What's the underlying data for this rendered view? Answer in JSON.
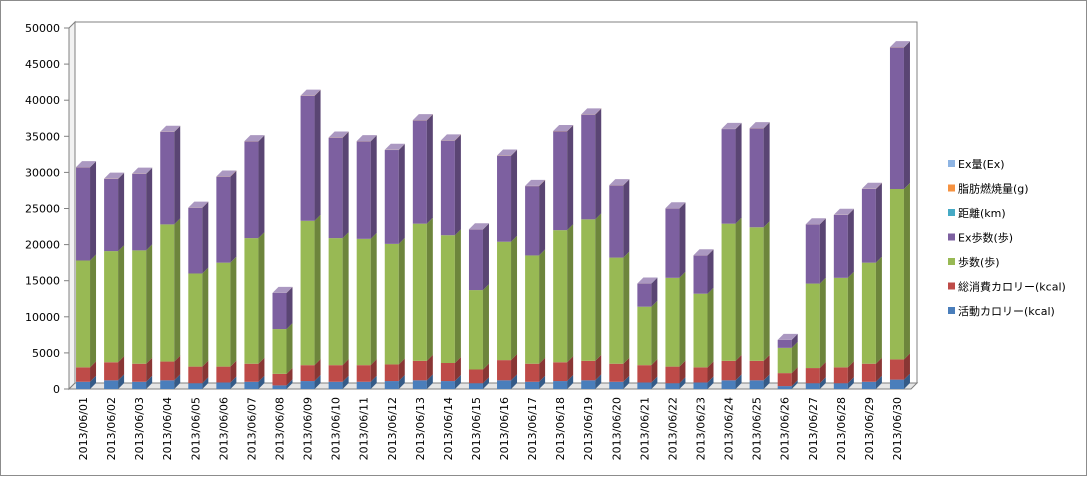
{
  "chart_data": {
    "type": "bar",
    "stacked": true,
    "style": "3d-column",
    "categories": [
      "2013/06/01",
      "2013/06/02",
      "2013/06/03",
      "2013/06/04",
      "2013/06/05",
      "2013/06/06",
      "2013/06/07",
      "2013/06/08",
      "2013/06/09",
      "2013/06/10",
      "2013/06/11",
      "2013/06/12",
      "2013/06/13",
      "2013/06/14",
      "2013/06/15",
      "2013/06/16",
      "2013/06/17",
      "2013/06/18",
      "2013/06/19",
      "2013/06/20",
      "2013/06/21",
      "2013/06/22",
      "2013/06/23",
      "2013/06/24",
      "2013/06/25",
      "2013/06/26",
      "2013/06/27",
      "2013/06/28",
      "2013/06/29",
      "2013/06/30"
    ],
    "ylim": [
      0,
      50000
    ],
    "yticks": [
      "0",
      "5000",
      "10000",
      "15000",
      "20000",
      "25000",
      "30000",
      "35000",
      "40000",
      "45000",
      "50000"
    ],
    "grid": false,
    "legend_position": "right",
    "series": [
      {
        "name": "活動カロリー(kcal)",
        "color": "#4a7ebb",
        "values": [
          1000,
          1200,
          1000,
          1200,
          800,
          900,
          1000,
          500,
          1100,
          1000,
          1000,
          1100,
          1200,
          1100,
          800,
          1200,
          1000,
          1100,
          1200,
          1000,
          900,
          800,
          900,
          1200,
          1200,
          400,
          800,
          800,
          1000,
          1300
        ]
      },
      {
        "name": "総消費カロリー(kcal)",
        "color": "#be4b48",
        "values": [
          2000,
          2500,
          2500,
          2600,
          2300,
          2200,
          2500,
          1600,
          2200,
          2300,
          2300,
          2300,
          2700,
          2500,
          1900,
          2800,
          2500,
          2600,
          2700,
          2500,
          2400,
          2300,
          2100,
          2700,
          2700,
          1800,
          2100,
          2200,
          2500,
          2800
        ]
      },
      {
        "name": "歩数(歩)",
        "color": "#98b954",
        "values": [
          14800,
          15400,
          15700,
          19000,
          12900,
          14400,
          17400,
          6200,
          20000,
          17600,
          17500,
          16700,
          19000,
          17700,
          11000,
          16400,
          15000,
          18300,
          19600,
          14700,
          8100,
          12300,
          10200,
          19000,
          18500,
          3500,
          11700,
          12400,
          14000,
          23600
        ]
      },
      {
        "name": "Ex歩数(歩)",
        "color": "#7d60a0",
        "values": [
          12900,
          10000,
          10600,
          12800,
          9100,
          11900,
          13400,
          5000,
          17300,
          13900,
          13500,
          13000,
          14300,
          13100,
          8400,
          11900,
          9600,
          13700,
          14500,
          10000,
          3200,
          9600,
          5300,
          13100,
          13700,
          1100,
          8200,
          8700,
          10200,
          19600
        ]
      },
      {
        "name": "距離(km)",
        "color": "#46aac5",
        "values": [
          5,
          6,
          6,
          7,
          5,
          5,
          6,
          3,
          7,
          6,
          6,
          6,
          7,
          6,
          4,
          6,
          6,
          7,
          7,
          6,
          4,
          5,
          4,
          7,
          7,
          2,
          5,
          5,
          6,
          8
        ]
      },
      {
        "name": "脂肪燃焼量(g)",
        "color": "#f69240",
        "values": [
          20,
          22,
          21,
          25,
          18,
          19,
          22,
          10,
          26,
          22,
          22,
          22,
          25,
          23,
          15,
          24,
          21,
          24,
          26,
          21,
          13,
          18,
          15,
          25,
          25,
          6,
          17,
          18,
          21,
          30
        ]
      },
      {
        "name": "Ex量(Ex)",
        "color": "#8eb4e3",
        "values": [
          3,
          3,
          3,
          4,
          3,
          3,
          3,
          1,
          4,
          3,
          3,
          3,
          4,
          3,
          2,
          3,
          3,
          4,
          4,
          3,
          2,
          3,
          2,
          4,
          4,
          1,
          3,
          3,
          3,
          5
        ]
      }
    ]
  }
}
